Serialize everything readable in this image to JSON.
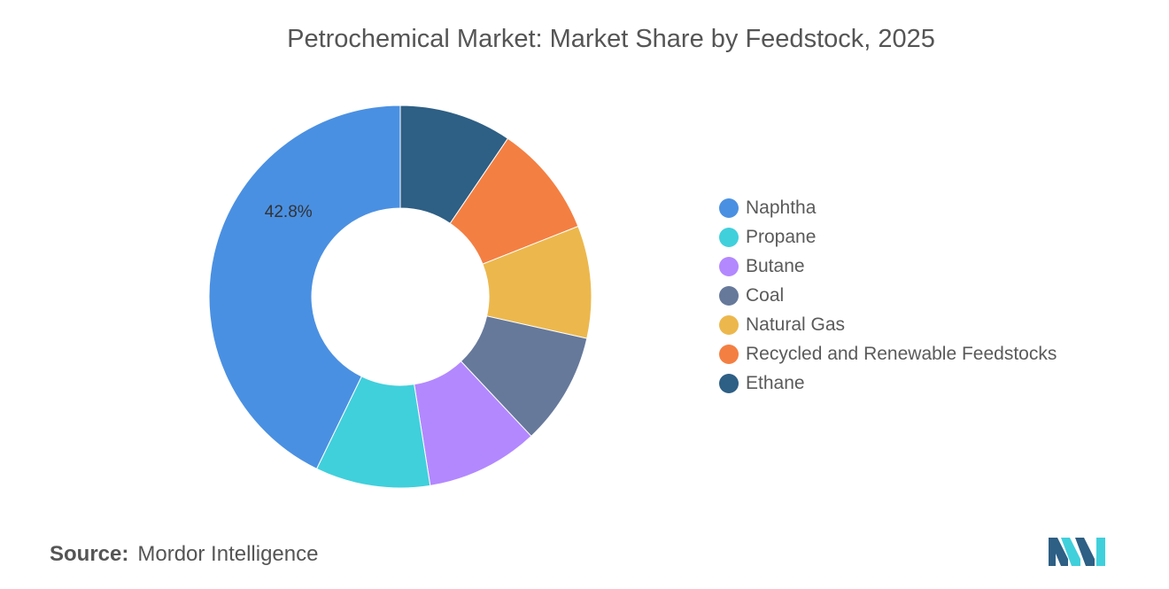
{
  "chart_data": {
    "type": "donut",
    "title": "Petrochemical Market: Market Share by Feedstock, 2025",
    "categories": [
      "Naphtha",
      "Propane",
      "Butane",
      "Coal",
      "Natural Gas",
      "Recycled and Renewable Feedstocks",
      "Ethane"
    ],
    "values": [
      42.8,
      9.7,
      9.5,
      9.5,
      9.5,
      9.5,
      9.5
    ],
    "colors": [
      "#4a90e2",
      "#40d0dc",
      "#b388ff",
      "#66799b",
      "#ecb84d",
      "#f47f42",
      "#2e5f85"
    ],
    "data_labels": [
      "42.8%",
      "",
      "",
      "",
      "",
      "",
      ""
    ],
    "legend_position": "right"
  },
  "source": {
    "label": "Source:",
    "value": "Mordor Intelligence"
  },
  "logo": {
    "name": "mordor-intelligence-logo",
    "colors": [
      "#2e5f85",
      "#40d0dc"
    ]
  }
}
